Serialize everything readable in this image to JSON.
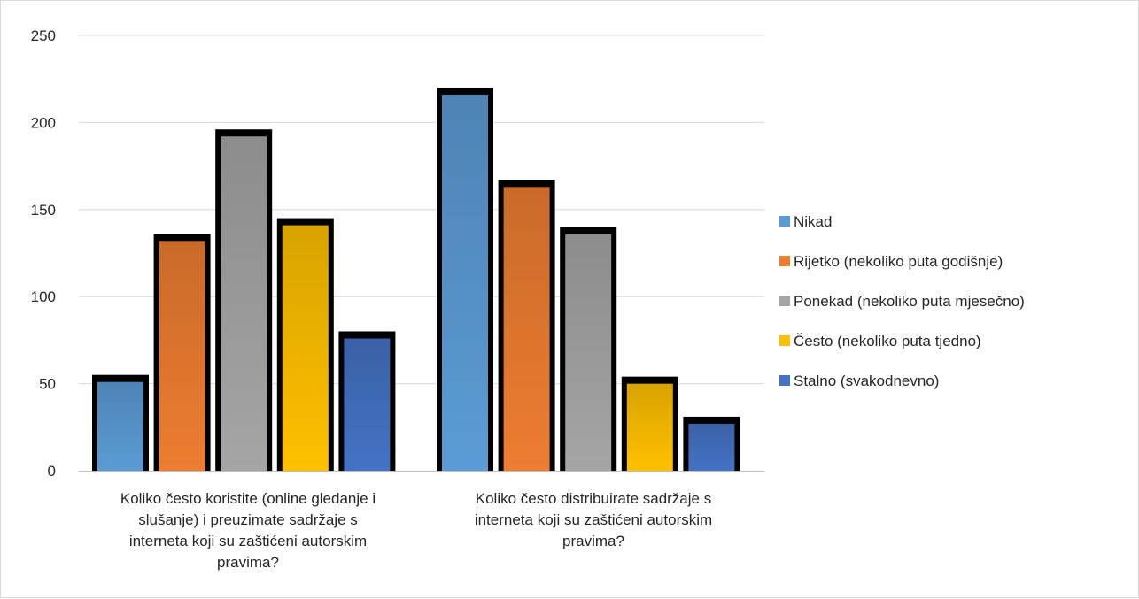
{
  "chart_data": {
    "type": "bar",
    "title": "",
    "xlabel": "",
    "ylabel": "",
    "ylim": [
      0,
      250
    ],
    "yticks": [
      0,
      50,
      100,
      150,
      200,
      250
    ],
    "grid": true,
    "legend_position": "right",
    "categories": [
      "Koliko često koristite (online gledanje i slušanje) i preuzimate sadržaje s interneta koji su zaštićeni autorskim pravima?",
      "Koliko često distribuirate sadržaje s interneta koji su zaštićeni autorskim pravima?"
    ],
    "category_lines": [
      [
        "Koliko često koristite (online gledanje i",
        "slušanje) i preuzimate sadržaje s",
        "interneta koji su zaštićeni autorskim",
        "pravima?"
      ],
      [
        "Koliko često distribuirate sadržaje s",
        "interneta koji su zaštićeni autorskim",
        "pravima?"
      ]
    ],
    "series": [
      {
        "name": "Nikad",
        "values": [
          53,
          218
        ],
        "color": "#5B9BD5"
      },
      {
        "name": "Rijetko (nekoliko puta godišnje)",
        "values": [
          134,
          165
        ],
        "color": "#ED7D31"
      },
      {
        "name": "Ponekad (nekoliko puta mjesečno)",
        "values": [
          194,
          138
        ],
        "color": "#A5A5A5"
      },
      {
        "name": "Često (nekoliko puta tjedno)",
        "values": [
          143,
          52
        ],
        "color": "#FFC000"
      },
      {
        "name": "Stalno (svakodnevno)",
        "values": [
          78,
          29
        ],
        "color": "#4472C4"
      }
    ]
  }
}
